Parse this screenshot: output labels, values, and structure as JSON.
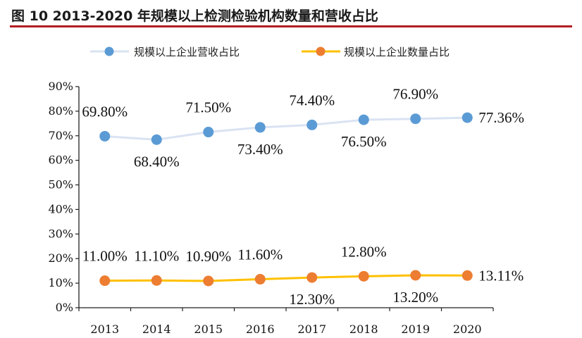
{
  "header": {
    "title": "图 10 2013-2020 年规模以上检测检验机构数量和营收占比"
  },
  "colors": {
    "accent": "#b01e23",
    "series_revenue": "#5b9bd5",
    "series_revenue_line": "#dae3f3",
    "series_count_line": "#ffc000",
    "series_count_marker": "#ed7d31"
  },
  "chart_data": {
    "type": "line",
    "title": "图 10 2013-2020 年规模以上检测检验机构数量和营收占比",
    "xlabel": "",
    "ylabel": "",
    "categories": [
      "2013",
      "2014",
      "2015",
      "2016",
      "2017",
      "2018",
      "2019",
      "2020"
    ],
    "yticks": [
      "0%",
      "10%",
      "20%",
      "30%",
      "40%",
      "50%",
      "60%",
      "70%",
      "80%",
      "90%"
    ],
    "ylim": [
      0,
      90
    ],
    "grid": false,
    "legend_position": "top",
    "series": [
      {
        "name": "规模以上企业营收占比",
        "values": [
          69.8,
          68.4,
          71.5,
          73.4,
          74.4,
          76.5,
          76.9,
          77.36
        ],
        "labels": [
          "69.80%",
          "68.40%",
          "71.50%",
          "73.40%",
          "74.40%",
          "76.50%",
          "76.90%",
          "77.36%"
        ],
        "label_side": [
          "above",
          "below",
          "above",
          "below",
          "above",
          "below",
          "above",
          "right"
        ]
      },
      {
        "name": "规模以上企业数量占比",
        "values": [
          11.0,
          11.1,
          10.9,
          11.6,
          12.3,
          12.8,
          13.2,
          13.11
        ],
        "labels": [
          "11.00%",
          "11.10%",
          "10.90%",
          "11.60%",
          "12.30%",
          "12.80%",
          "13.20%",
          "13.11%"
        ],
        "label_side": [
          "above",
          "above",
          "above",
          "above",
          "below",
          "above",
          "below",
          "right"
        ]
      }
    ]
  }
}
